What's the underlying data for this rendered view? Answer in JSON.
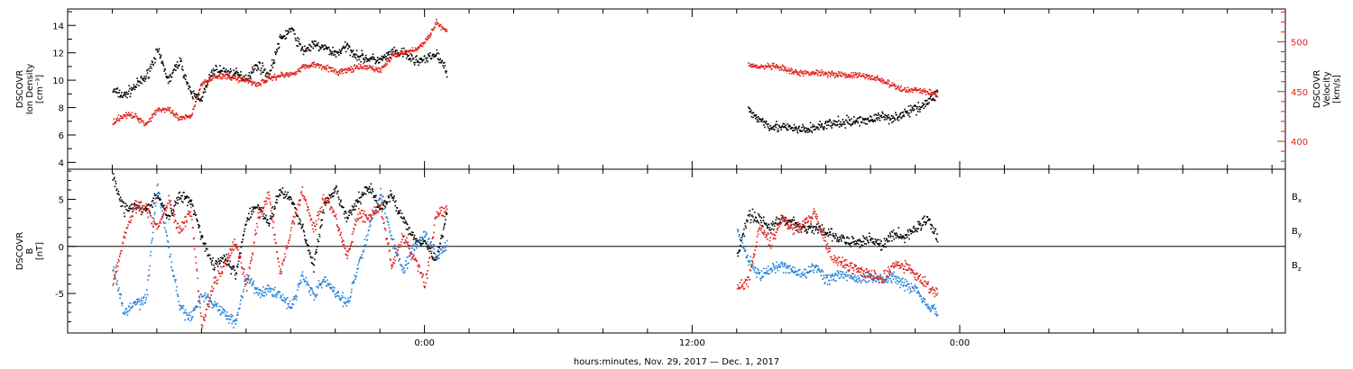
{
  "chart_data": [
    {
      "type": "scatter",
      "panel": "top",
      "ylabel_left": [
        "DSCOVR",
        "Ion Density",
        "[cm⁻³]"
      ],
      "ylabel_right": [
        "DSCOVR",
        "Velocity",
        "[km/s]"
      ],
      "left_axis": {
        "ylim": [
          3.5,
          15.2
        ],
        "ticks": [
          4,
          6,
          8,
          10,
          12,
          14
        ],
        "color": "#000000"
      },
      "right_axis": {
        "ylim": [
          372,
          533
        ],
        "ticks": [
          400,
          450,
          500
        ],
        "color": "#e0201a"
      },
      "series": [
        {
          "axis": "left",
          "color": "#000000",
          "x": [
            -14,
            -13.5,
            -13,
            -12.5,
            -12,
            -11.5,
            -11,
            -10.5,
            -10,
            -9.5,
            -9,
            -8.5,
            -8,
            -7.5,
            -7,
            -6.5,
            -6,
            -5.5,
            -5,
            -4.5,
            -4,
            -3.5,
            -3,
            -2.5,
            -2,
            -1.5,
            -1,
            -0.5,
            0,
            0.5,
            1
          ],
          "values": [
            9.3,
            8.9,
            9.6,
            10.3,
            12.2,
            10.0,
            11.5,
            9.0,
            8.8,
            10.8,
            10.7,
            10.5,
            10.2,
            11.2,
            10.4,
            13.0,
            13.8,
            12.2,
            12.6,
            12.4,
            12.0,
            12.5,
            11.8,
            11.6,
            11.5,
            12.0,
            12.0,
            11.5,
            11.5,
            12.0,
            10.6
          ]
        },
        {
          "axis": "right",
          "color": "#e0201a",
          "x": [
            -14,
            -13.5,
            -13,
            -12.5,
            -12,
            -11.5,
            -11,
            -10.5,
            -10,
            -9.5,
            -9,
            -8.5,
            -8,
            -7.5,
            -7,
            -6.5,
            -6,
            -5.5,
            -5,
            -4.5,
            -4,
            -3.5,
            -3,
            -2.5,
            -2,
            -1.5,
            -1,
            -0.5,
            0,
            0.5,
            1
          ],
          "values": [
            420,
            427,
            426,
            418,
            433,
            432,
            423,
            426,
            460,
            465,
            466,
            464,
            462,
            458,
            464,
            467,
            468,
            475,
            478,
            476,
            470,
            472,
            475,
            475,
            472,
            486,
            490,
            492,
            500,
            520,
            510
          ]
        },
        {
          "axis": "left",
          "color": "#000000",
          "x": [
            14.5,
            15,
            15.5,
            16,
            16.5,
            17,
            17.5,
            18,
            18.5,
            19,
            19.5,
            20,
            20.5,
            21,
            21.5,
            22,
            22.5,
            23
          ],
          "values": [
            7.8,
            7.2,
            6.7,
            6.6,
            6.5,
            6.4,
            6.6,
            6.8,
            6.9,
            7.0,
            7.1,
            7.2,
            7.4,
            7.3,
            7.6,
            8.0,
            8.4,
            9.2
          ]
        },
        {
          "axis": "right",
          "color": "#e0201a",
          "x": [
            14.5,
            15,
            15.5,
            16,
            16.5,
            17,
            17.5,
            18,
            18.5,
            19,
            19.5,
            20,
            20.5,
            21,
            21.5,
            22,
            22.5,
            23
          ],
          "values": [
            478,
            475,
            476,
            474,
            470,
            469,
            470,
            469,
            468,
            467,
            467,
            465,
            462,
            456,
            452,
            453,
            450,
            448
          ]
        }
      ]
    },
    {
      "type": "scatter",
      "panel": "bottom",
      "ylabel_left": [
        "DSCOVR",
        "B",
        "[nT]"
      ],
      "ylim": [
        -9.2,
        8.2
      ],
      "ticks": [
        -5,
        0,
        5
      ],
      "zero_line": true,
      "legend_position": "right",
      "series": [
        {
          "name": "Bx",
          "color": "#000000",
          "x": [
            -14,
            -13.5,
            -13,
            -12.5,
            -12,
            -11.5,
            -11,
            -10.5,
            -10,
            -9.5,
            -9,
            -8.5,
            -8,
            -7.5,
            -7,
            -6.5,
            -6,
            -5.5,
            -5,
            -4.5,
            -4,
            -3.5,
            -3,
            -2.5,
            -2,
            -1.5,
            -1,
            -0.5,
            0,
            0.5,
            1,
            14,
            14.5,
            15,
            15.5,
            16,
            16.5,
            17,
            17.5,
            18,
            18.5,
            19,
            19.5,
            20,
            20.5,
            21,
            21.5,
            22,
            22.5,
            23
          ],
          "values": [
            7.5,
            4.0,
            4.5,
            3.8,
            5.5,
            3.0,
            5.5,
            5.0,
            1.0,
            -2.0,
            -1.0,
            -3.0,
            3.0,
            4.5,
            2.5,
            6.0,
            5.0,
            2.0,
            -2.0,
            4.5,
            6.0,
            3.0,
            5.0,
            6.5,
            4.0,
            5.5,
            3.0,
            1.0,
            0.5,
            -1.5,
            4.0,
            -1.0,
            3.5,
            3.0,
            2.0,
            3.0,
            2.5,
            2.0,
            2.0,
            1.5,
            1.0,
            0.5,
            0.5,
            1.0,
            0.0,
            1.5,
            1.0,
            2.0,
            3.0,
            1.0
          ]
        },
        {
          "name": "By",
          "color": "#1f7fd6",
          "x": [
            -14,
            -13.5,
            -13,
            -12.5,
            -12,
            -11.5,
            -11,
            -10.5,
            -10,
            -9.5,
            -9,
            -8.5,
            -8,
            -7.5,
            -7,
            -6.5,
            -6,
            -5.5,
            -5,
            -4.5,
            -4,
            -3.5,
            -3,
            -2.5,
            -2,
            -1.5,
            -1,
            -0.5,
            0,
            0.5,
            1,
            14,
            14.5,
            15,
            15.5,
            16,
            16.5,
            17,
            17.5,
            18,
            18.5,
            19,
            19.5,
            20,
            20.5,
            21,
            21.5,
            22,
            22.5,
            23
          ],
          "values": [
            -2.0,
            -7.0,
            -6.0,
            -5.5,
            6.5,
            0.0,
            -6.5,
            -7.5,
            -5.0,
            -6.0,
            -7.0,
            -8.0,
            -3.0,
            -5.0,
            -4.5,
            -5.0,
            -6.5,
            -3.0,
            -5.0,
            -3.5,
            -5.0,
            -6.0,
            -2.0,
            2.0,
            6.0,
            1.0,
            -2.5,
            0.0,
            1.5,
            -1.0,
            0.5,
            2.0,
            -1.5,
            -3.0,
            -2.5,
            -2.0,
            -2.5,
            -3.0,
            -2.0,
            -3.5,
            -3.0,
            -3.0,
            -3.5,
            -3.0,
            -3.5,
            -3.0,
            -4.0,
            -4.5,
            -6.0,
            -7.0
          ]
        },
        {
          "name": "Bz",
          "color": "#e0201a",
          "x": [
            -14,
            -13.5,
            -13,
            -12.5,
            -12,
            -11.5,
            -11,
            -10.5,
            -10,
            -9.5,
            -9,
            -8.5,
            -8,
            -7.5,
            -7,
            -6.5,
            -6,
            -5.5,
            -5,
            -4.5,
            -4,
            -3.5,
            -3,
            -2.5,
            -2,
            -1.5,
            -1,
            -0.5,
            0,
            0.5,
            1,
            14,
            14.5,
            15,
            15.5,
            16,
            16.5,
            17,
            17.5,
            18,
            18.5,
            19,
            19.5,
            20,
            20.5,
            21,
            21.5,
            22,
            22.5,
            23
          ],
          "values": [
            -4.0,
            1.0,
            4.5,
            4.0,
            2.0,
            5.0,
            1.5,
            4.0,
            -8.5,
            -4.0,
            -2.0,
            0.5,
            -4.0,
            3.0,
            5.5,
            -3.0,
            2.0,
            6.0,
            2.0,
            5.5,
            3.0,
            -1.0,
            3.5,
            3.0,
            4.5,
            -2.0,
            1.0,
            -1.0,
            -4.0,
            3.5,
            4.0,
            -4.5,
            -3.5,
            2.0,
            0.5,
            3.0,
            2.0,
            2.5,
            3.5,
            0.0,
            -1.5,
            -2.0,
            -2.5,
            -3.0,
            -3.5,
            -2.0,
            -2.0,
            -3.0,
            -4.0,
            -5.0
          ]
        }
      ]
    }
  ],
  "x_axis": {
    "xlim": [
      -16,
      38.6
    ],
    "major_ticks": [
      0,
      12,
      24
    ],
    "tick_labels": [
      "0:00",
      "12:00",
      "0:00"
    ],
    "minor_step": 2,
    "label": "hours:minutes, Nov. 29, 2017 — Dec. 1, 2017"
  },
  "legend": [
    {
      "label": "B",
      "sub": "x",
      "color": "#000000"
    },
    {
      "label": "B",
      "sub": "y",
      "color": "#1f7fd6"
    },
    {
      "label": "B",
      "sub": "z",
      "color": "#e0201a"
    }
  ]
}
